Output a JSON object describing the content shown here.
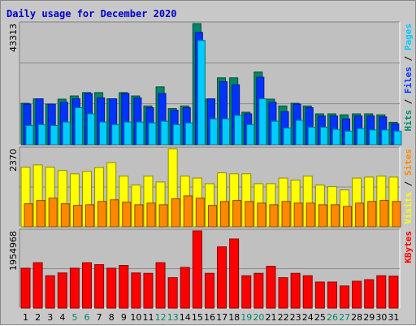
{
  "chart_data": {
    "type": "bar",
    "title": "Daily usage for December 2020",
    "categories": [
      "1",
      "2",
      "3",
      "4",
      "5",
      "6",
      "7",
      "8",
      "9",
      "10",
      "11",
      "12",
      "13",
      "14",
      "15",
      "16",
      "17",
      "18",
      "19",
      "20",
      "21",
      "22",
      "23",
      "24",
      "25",
      "26",
      "27",
      "28",
      "29",
      "30",
      "31"
    ],
    "weekend_days": [
      "5",
      "6",
      "12",
      "13",
      "19",
      "20",
      "26",
      "27"
    ],
    "panels": [
      {
        "name": "pages-files-hits",
        "max_label": "43313",
        "ylim": [
          0,
          43313
        ],
        "legend": [
          {
            "text": "Pages",
            "color": "#00ccff"
          },
          {
            "text": "Files",
            "color": "#0033ff"
          },
          {
            "text": "Hits",
            "color": "#008866"
          }
        ],
        "series": [
          {
            "name": "Hits",
            "color": "#008866",
            "values": [
              14820,
              16410,
              14510,
              16290,
              17430,
              18630,
              18630,
              16410,
              18630,
              17430,
              13860,
              20680,
              12930,
              13860,
              43313,
              16290,
              23910,
              23910,
              11610,
              26010,
              16290,
              13860,
              14820,
              13860,
              11040,
              11040,
              10690,
              11040,
              11040,
              10690,
              8010
            ]
          },
          {
            "name": "Files",
            "color": "#0033ff",
            "values": [
              14510,
              16410,
              14510,
              15180,
              16410,
              18310,
              16740,
              16410,
              18310,
              16740,
              13240,
              18310,
              12330,
              13240,
              40160,
              16410,
              22540,
              21430,
              11040,
              24110,
              15180,
              11810,
              14510,
              13240,
              10260,
              10260,
              9240,
              10260,
              10260,
              9940,
              7450
            ]
          },
          {
            "name": "Pages",
            "color": "#00ccff",
            "values": [
              6860,
              7180,
              6860,
              8100,
              13240,
              11040,
              8100,
              7180,
              8100,
              8100,
              7800,
              8400,
              7180,
              7800,
              37290,
              9240,
              9240,
              10480,
              7180,
              16410,
              8400,
              5960,
              8730,
              6260,
              6260,
              5480,
              4860,
              5770,
              5290,
              5290,
              4860
            ]
          }
        ]
      },
      {
        "name": "visits-sites",
        "max_label": "2370",
        "ylim": [
          0,
          2370
        ],
        "legend": [
          {
            "text": "Sites",
            "color": "#ff8800"
          },
          {
            "text": "Visits",
            "color": "#ffff00"
          }
        ],
        "series": [
          {
            "name": "Visits",
            "color": "#ffff00",
            "values": [
              1810,
              1880,
              1810,
              1710,
              1610,
              1680,
              1800,
              1950,
              1540,
              1270,
              1540,
              1360,
              2370,
              1540,
              1480,
              1310,
              1640,
              1610,
              1610,
              1310,
              1310,
              1480,
              1420,
              1540,
              1270,
              1220,
              1120,
              1480,
              1510,
              1540,
              1510
            ]
          },
          {
            "name": "Sites",
            "color": "#ff8800",
            "values": [
              700,
              800,
              870,
              700,
              650,
              670,
              770,
              820,
              750,
              670,
              720,
              670,
              850,
              940,
              870,
              650,
              770,
              800,
              770,
              720,
              670,
              770,
              720,
              720,
              670,
              670,
              620,
              720,
              770,
              800,
              770
            ]
          }
        ]
      },
      {
        "name": "kbytes",
        "max_label": "1954968",
        "ylim": [
          0,
          1954968
        ],
        "legend": [
          {
            "text": "KBytes",
            "color": "#ff0000"
          }
        ],
        "series": [
          {
            "name": "KBytes",
            "color": "#ff0000",
            "values": [
              1010000,
              1150000,
              820000,
              890000,
              1010000,
              1150000,
              1100000,
              1010000,
              1080000,
              890000,
              880000,
              1150000,
              770000,
              1030000,
              1954968,
              880000,
              1550000,
              1750000,
              820000,
              880000,
              1060000,
              770000,
              880000,
              820000,
              660000,
              660000,
              560000,
              680000,
              720000,
              820000,
              810000
            ]
          }
        ]
      }
    ],
    "grid": "horizontal",
    "colors": {
      "background": "#c8c8c8",
      "plot_background": "#c0c0c0",
      "title": "#0000cc",
      "weekday_label": "#000000",
      "weekend_label": "#008866"
    }
  }
}
